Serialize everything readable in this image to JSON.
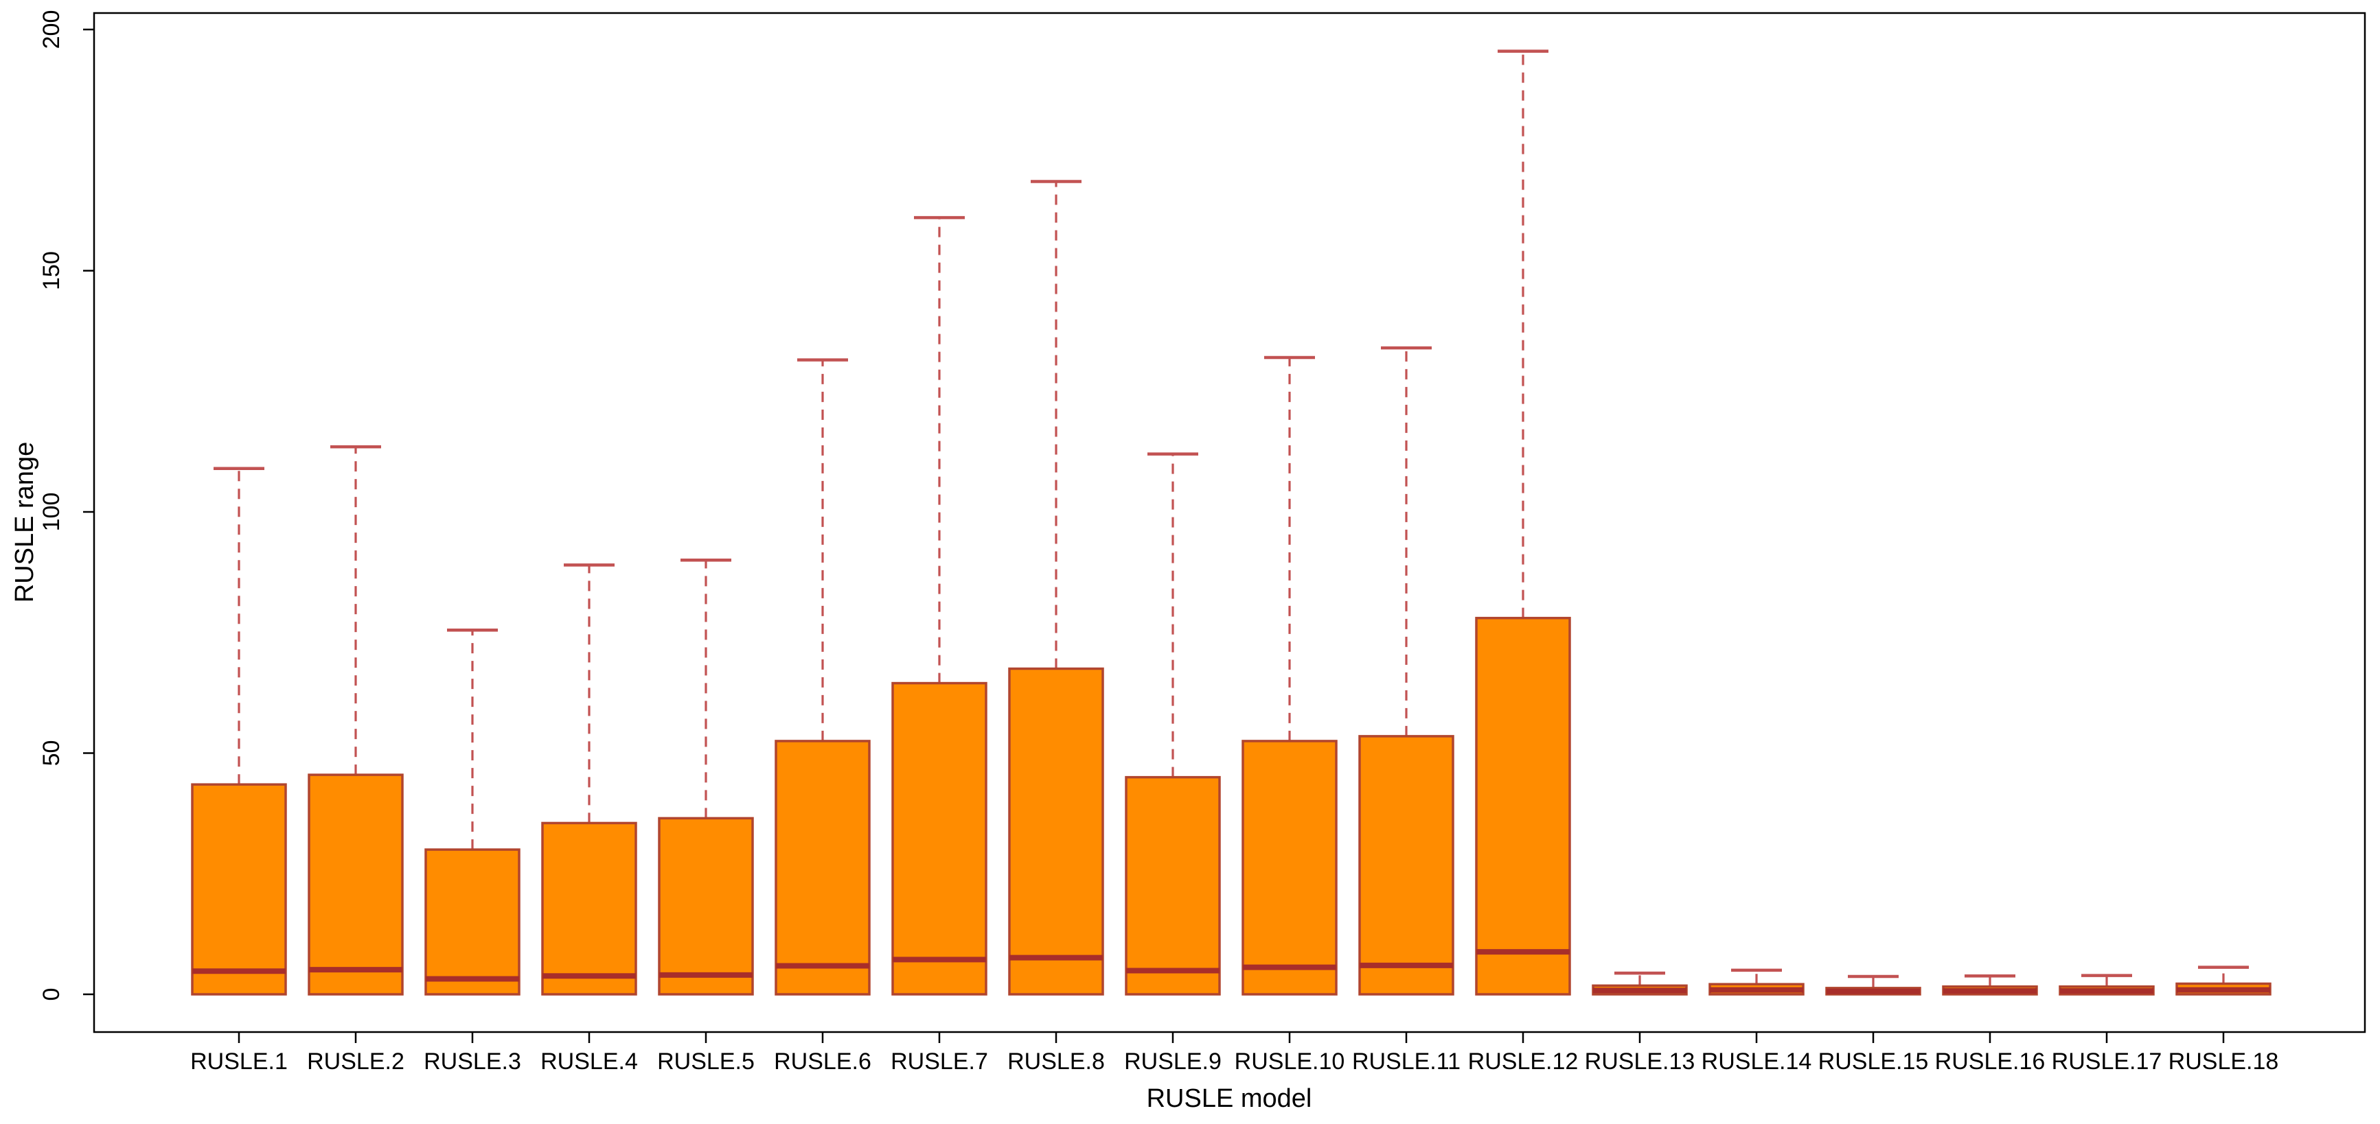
{
  "figure": {
    "background": "#ffffff",
    "frame_color": "#000000"
  },
  "chart_data": {
    "type": "boxplot",
    "title": "",
    "xlabel": "RUSLE model",
    "ylabel": "RUSLE range",
    "ylim": [
      0,
      200
    ],
    "y_ticks": [
      0,
      50,
      100,
      150,
      200
    ],
    "grid": false,
    "legend": "none",
    "categories": [
      "RUSLE.1",
      "RUSLE.2",
      "RUSLE.3",
      "RUSLE.4",
      "RUSLE.5",
      "RUSLE.6",
      "RUSLE.7",
      "RUSLE.8",
      "RUSLE.9",
      "RUSLE.10",
      "RUSLE.11",
      "RUSLE.12",
      "RUSLE.13",
      "RUSLE.14",
      "RUSLE.15",
      "RUSLE.16",
      "RUSLE.17",
      "RUSLE.18"
    ],
    "boxes": [
      {
        "label": "RUSLE.1",
        "whisker_low": 0,
        "q1": 0,
        "median": 4.8,
        "q3": 43.5,
        "whisker_high": 109
      },
      {
        "label": "RUSLE.2",
        "whisker_low": 0,
        "q1": 0,
        "median": 5.1,
        "q3": 45.5,
        "whisker_high": 113.5
      },
      {
        "label": "RUSLE.3",
        "whisker_low": 0,
        "q1": 0,
        "median": 3.2,
        "q3": 30,
        "whisker_high": 75.5
      },
      {
        "label": "RUSLE.4",
        "whisker_low": 0,
        "q1": 0,
        "median": 3.8,
        "q3": 35.5,
        "whisker_high": 89
      },
      {
        "label": "RUSLE.5",
        "whisker_low": 0,
        "q1": 0,
        "median": 4.0,
        "q3": 36.5,
        "whisker_high": 90
      },
      {
        "label": "RUSLE.6",
        "whisker_low": 0,
        "q1": 0,
        "median": 5.9,
        "q3": 52.5,
        "whisker_high": 131.5
      },
      {
        "label": "RUSLE.7",
        "whisker_low": 0,
        "q1": 0,
        "median": 7.2,
        "q3": 64.5,
        "whisker_high": 161
      },
      {
        "label": "RUSLE.8",
        "whisker_low": 0,
        "q1": 0,
        "median": 7.6,
        "q3": 67.5,
        "whisker_high": 168.5
      },
      {
        "label": "RUSLE.9",
        "whisker_low": 0,
        "q1": 0,
        "median": 4.9,
        "q3": 45,
        "whisker_high": 112
      },
      {
        "label": "RUSLE.10",
        "whisker_low": 0,
        "q1": 0,
        "median": 5.6,
        "q3": 52.5,
        "whisker_high": 132
      },
      {
        "label": "RUSLE.11",
        "whisker_low": 0,
        "q1": 0,
        "median": 6.0,
        "q3": 53.5,
        "whisker_high": 134
      },
      {
        "label": "RUSLE.12",
        "whisker_low": 0,
        "q1": 0,
        "median": 8.8,
        "q3": 78,
        "whisker_high": 195.5
      },
      {
        "label": "RUSLE.13",
        "whisker_low": 0,
        "q1": 0,
        "median": 0.8,
        "q3": 1.8,
        "whisker_high": 4.4
      },
      {
        "label": "RUSLE.14",
        "whisker_low": 0,
        "q1": 0,
        "median": 0.9,
        "q3": 2.1,
        "whisker_high": 5.0
      },
      {
        "label": "RUSLE.15",
        "whisker_low": 0,
        "q1": 0,
        "median": 0.6,
        "q3": 1.3,
        "whisker_high": 3.7
      },
      {
        "label": "RUSLE.16",
        "whisker_low": 0,
        "q1": 0,
        "median": 0.7,
        "q3": 1.6,
        "whisker_high": 3.8
      },
      {
        "label": "RUSLE.17",
        "whisker_low": 0,
        "q1": 0,
        "median": 0.7,
        "q3": 1.6,
        "whisker_high": 3.9
      },
      {
        "label": "RUSLE.18",
        "whisker_low": 0,
        "q1": 0,
        "median": 0.9,
        "q3": 2.2,
        "whisker_high": 5.6
      }
    ],
    "colors": {
      "box_fill": "#FF8C00",
      "box_border": "#B1452E",
      "median": "#A82E2A",
      "whisker": "#C25252",
      "staple": "#C25252",
      "axis": "#000000"
    }
  }
}
